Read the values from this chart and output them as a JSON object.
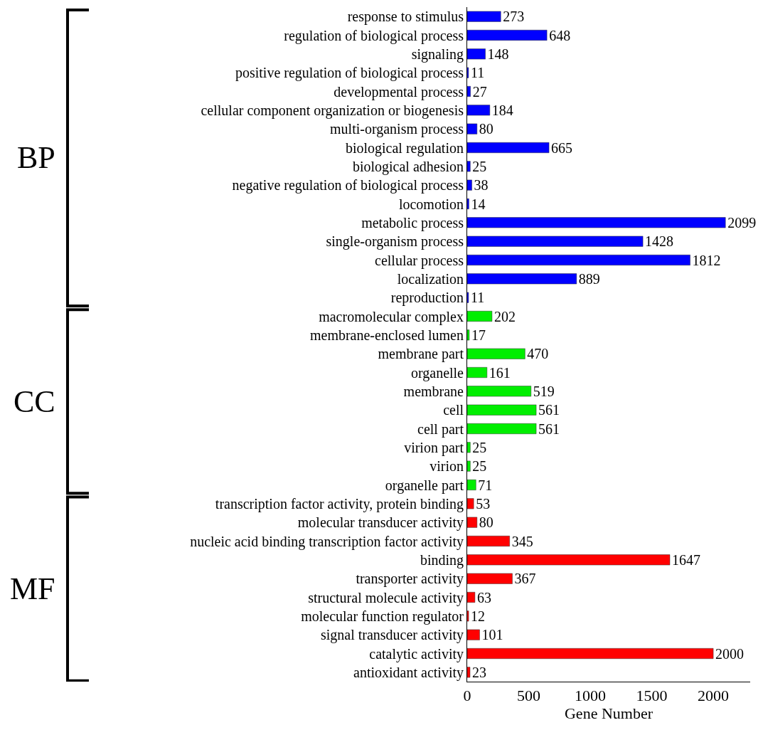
{
  "chart_data": {
    "type": "bar",
    "orientation": "horizontal",
    "xlabel": "Gene Number",
    "categories": [
      "response to stimulus",
      "regulation of biological process",
      "signaling",
      "positive regulation of biological process",
      "developmental process",
      "cellular component organization or biogenesis",
      "multi-organism process",
      "biological regulation",
      "biological adhesion",
      "negative regulation of biological process",
      "locomotion",
      "metabolic process",
      "single-organism process",
      "cellular process",
      "localization",
      "reproduction",
      "macromolecular complex",
      "membrane-enclosed lumen",
      "membrane part",
      "organelle",
      "membrane",
      "cell",
      "cell part",
      "virion part",
      "virion",
      "organelle part",
      "transcription factor activity, protein binding",
      "molecular transducer activity",
      "nucleic acid binding transcription factor activity",
      "binding",
      "transporter activity",
      "structural molecule activity",
      "molecular function regulator",
      "signal transducer activity",
      "catalytic activity",
      "antioxidant activity"
    ],
    "series": [
      {
        "color": "#0000ff",
        "values": [
          273,
          648,
          148,
          11,
          27,
          184,
          80,
          665,
          25,
          38,
          14,
          2099,
          1428,
          1812,
          889,
          11,
          null,
          null,
          null,
          null,
          null,
          null,
          null,
          null,
          null,
          null,
          null,
          null,
          null,
          null,
          null,
          null,
          null,
          null,
          null,
          null
        ]
      },
      {
        "color": "#00ee00",
        "values": [
          null,
          null,
          null,
          null,
          null,
          null,
          null,
          null,
          null,
          null,
          null,
          null,
          null,
          null,
          null,
          null,
          202,
          17,
          470,
          161,
          519,
          561,
          561,
          25,
          25,
          71,
          null,
          null,
          null,
          null,
          null,
          null,
          null,
          null,
          null,
          null
        ]
      },
      {
        "color": "#ff0000",
        "values": [
          null,
          null,
          null,
          null,
          null,
          null,
          null,
          null,
          null,
          null,
          null,
          null,
          null,
          null,
          null,
          null,
          null,
          null,
          null,
          null,
          null,
          null,
          null,
          null,
          null,
          null,
          53,
          80,
          345,
          1647,
          367,
          63,
          12,
          101,
          2000,
          23
        ]
      }
    ],
    "xlim": [
      0,
      2300
    ],
    "xticks": [
      0,
      500,
      1000,
      1500,
      2000
    ],
    "data_labels": true,
    "legend": false,
    "annotations": [
      "BP",
      "CC",
      "MF"
    ]
  }
}
